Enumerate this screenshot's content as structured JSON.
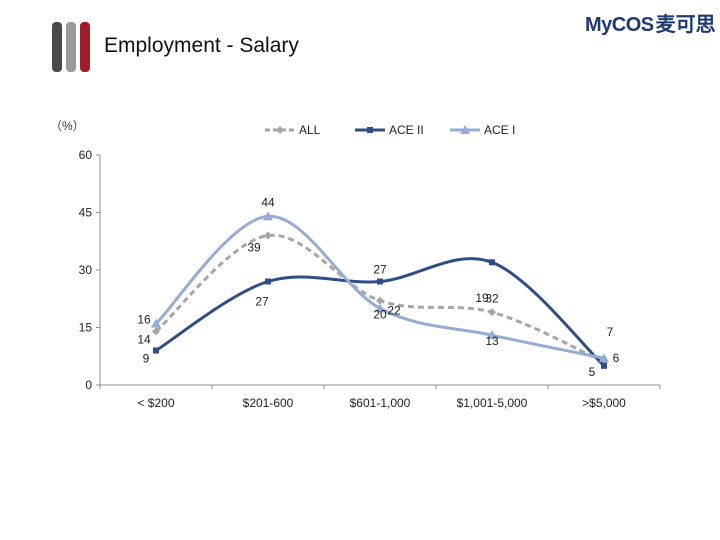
{
  "header": {
    "title": "Employment - Salary",
    "logo_text": "MyCOS",
    "logo_cn": "麦可思"
  },
  "colors": {
    "bar_dark": "#4a4a4a",
    "bar_gray": "#9a9a9a",
    "bar_red": "#a11d2b",
    "all": "#a6a6a6",
    "ace2": "#2f4e85",
    "ace1": "#94acd6"
  },
  "chart_data": {
    "type": "line",
    "title": "",
    "ylabel": "（%）",
    "xlabel": "",
    "categories": [
      "< $200",
      "$201-600",
      "$601-1,000",
      "$1,001-5,000",
      ">$5,000"
    ],
    "ylim": [
      0,
      60
    ],
    "yticks": [
      "0",
      "15",
      "30",
      "45",
      "60"
    ],
    "legend_position": "top",
    "series": [
      {
        "name": "ALL",
        "values": [
          14,
          39,
          22,
          19,
          6
        ],
        "color": "#a6a6a6",
        "dashed": true,
        "marker": "diamond"
      },
      {
        "name": "ACE II",
        "values": [
          9,
          27,
          27,
          32,
          5
        ],
        "color": "#2f4e85",
        "dashed": false,
        "marker": "square"
      },
      {
        "name": "ACE I",
        "values": [
          16,
          44,
          20,
          13,
          7
        ],
        "color": "#94acd6",
        "dashed": false,
        "marker": "triangle"
      }
    ]
  }
}
